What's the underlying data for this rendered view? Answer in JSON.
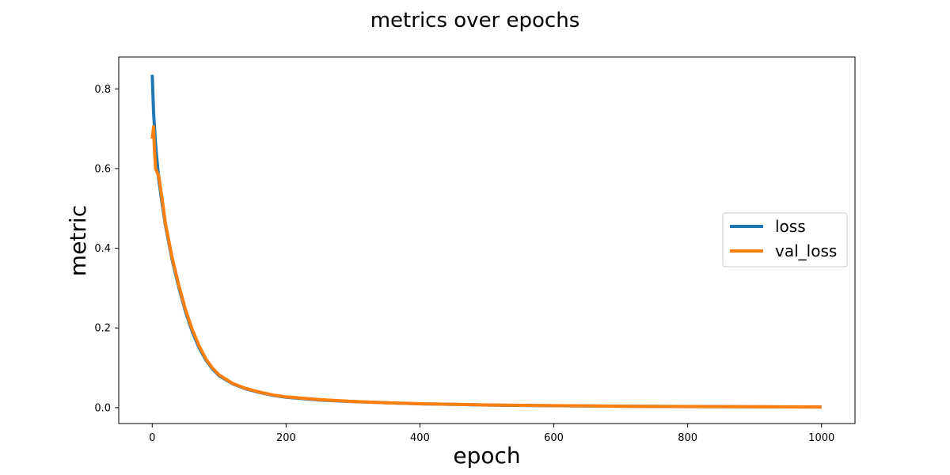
{
  "chart_data": {
    "type": "line",
    "title": "metrics over epochs",
    "xlabel": "epoch",
    "ylabel": "metric",
    "xlim": [
      -50,
      1050
    ],
    "ylim": [
      -0.04,
      0.88
    ],
    "xticks": [
      0,
      200,
      400,
      600,
      800,
      1000
    ],
    "yticks": [
      0.0,
      0.2,
      0.4,
      0.6,
      0.8
    ],
    "grid": false,
    "legend_position": "center-right",
    "series": [
      {
        "name": "loss",
        "color": "#1f77b4",
        "x": [
          0,
          2,
          5,
          10,
          15,
          20,
          30,
          40,
          50,
          60,
          70,
          80,
          90,
          100,
          120,
          140,
          160,
          180,
          200,
          250,
          300,
          350,
          400,
          450,
          500,
          600,
          700,
          800,
          900,
          1000
        ],
        "y": [
          0.835,
          0.74,
          0.66,
          0.57,
          0.51,
          0.455,
          0.37,
          0.3,
          0.24,
          0.19,
          0.15,
          0.12,
          0.097,
          0.08,
          0.06,
          0.047,
          0.038,
          0.031,
          0.026,
          0.019,
          0.015,
          0.012,
          0.0095,
          0.008,
          0.0065,
          0.0048,
          0.0035,
          0.0026,
          0.002,
          0.0015
        ]
      },
      {
        "name": "val_loss",
        "color": "#ff7f0e",
        "x": [
          0,
          2,
          3,
          5,
          10,
          15,
          20,
          30,
          40,
          50,
          60,
          70,
          80,
          90,
          100,
          120,
          140,
          160,
          180,
          200,
          250,
          300,
          350,
          400,
          450,
          500,
          600,
          700,
          800,
          900,
          1000
        ],
        "y": [
          0.675,
          0.705,
          0.66,
          0.6,
          0.58,
          0.52,
          0.46,
          0.375,
          0.305,
          0.245,
          0.195,
          0.155,
          0.123,
          0.099,
          0.082,
          0.061,
          0.048,
          0.039,
          0.032,
          0.027,
          0.02,
          0.0155,
          0.0122,
          0.0097,
          0.0082,
          0.0067,
          0.0049,
          0.0036,
          0.0027,
          0.0021,
          0.0016
        ]
      }
    ]
  }
}
